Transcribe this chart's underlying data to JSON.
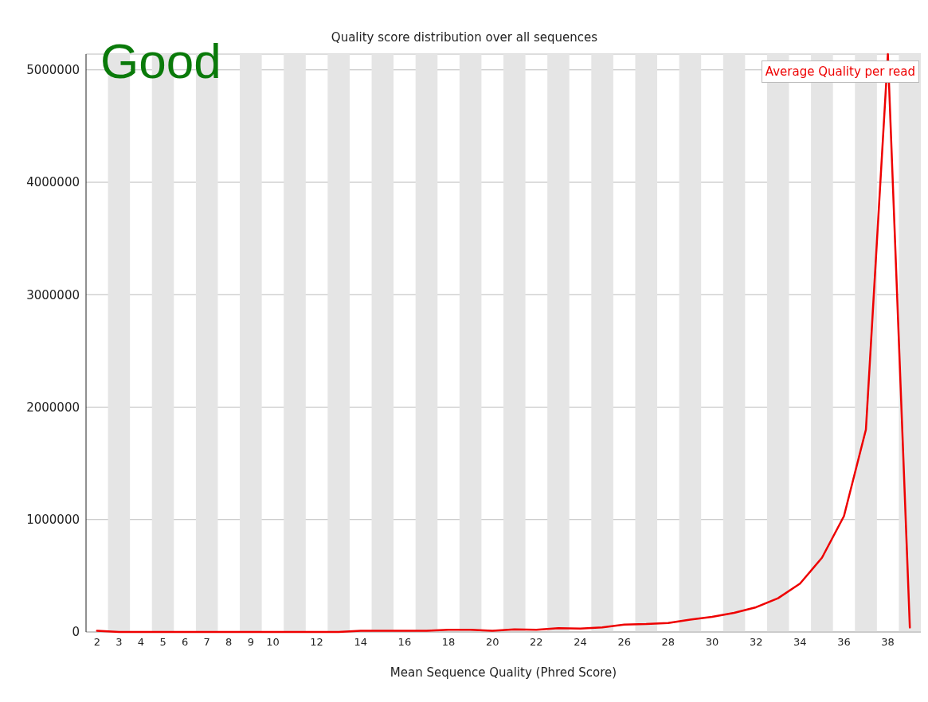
{
  "chart_data": {
    "type": "line",
    "title": "Quality score distribution over all sequences",
    "xlabel": "Mean Sequence Quality (Phred Score)",
    "annotations": [
      "Good"
    ],
    "x": [
      2,
      3,
      4,
      5,
      6,
      7,
      8,
      9,
      10,
      11,
      12,
      13,
      14,
      15,
      16,
      17,
      18,
      19,
      20,
      21,
      22,
      23,
      24,
      25,
      26,
      27,
      28,
      29,
      30,
      31,
      32,
      33,
      34,
      35,
      36,
      37,
      38,
      39
    ],
    "series": [
      {
        "name": "Average Quality per read",
        "color": "#ee0000",
        "values": [
          10000,
          0,
          0,
          0,
          0,
          0,
          0,
          0,
          0,
          0,
          0,
          0,
          10000,
          10000,
          10000,
          10000,
          20000,
          20000,
          10000,
          23000,
          20000,
          33000,
          30000,
          40000,
          65000,
          70000,
          80000,
          110000,
          135000,
          170000,
          220000,
          300000,
          430000,
          660000,
          1030000,
          1800000,
          5140000,
          40000
        ]
      }
    ],
    "xlim": [
      1.5,
      39.5
    ],
    "xticks": [
      2,
      3,
      4,
      5,
      6,
      7,
      8,
      9,
      10,
      12,
      14,
      16,
      18,
      20,
      22,
      24,
      26,
      28,
      30,
      32,
      34,
      36,
      38
    ],
    "ylim": [
      0,
      5140000
    ],
    "yticks": [
      0,
      1000000,
      2000000,
      3000000,
      4000000,
      5000000
    ],
    "grid": "y",
    "legend": "top right",
    "bands": [
      {
        "axis": "x",
        "from": 2.5,
        "to": 3.5,
        "color": "#e5e5e5"
      },
      {
        "axis": "x",
        "from": 4.5,
        "to": 5.5,
        "color": "#e5e5e5"
      },
      {
        "axis": "x",
        "from": 6.5,
        "to": 7.5,
        "color": "#e5e5e5"
      },
      {
        "axis": "x",
        "from": 8.5,
        "to": 9.5,
        "color": "#e5e5e5"
      },
      {
        "axis": "x",
        "from": 10.5,
        "to": 11.5,
        "color": "#e5e5e5"
      },
      {
        "axis": "x",
        "from": 12.5,
        "to": 13.5,
        "color": "#e5e5e5"
      },
      {
        "axis": "x",
        "from": 14.5,
        "to": 15.5,
        "color": "#e5e5e5"
      },
      {
        "axis": "x",
        "from": 16.5,
        "to": 17.5,
        "color": "#e5e5e5"
      },
      {
        "axis": "x",
        "from": 18.5,
        "to": 19.5,
        "color": "#e5e5e5"
      },
      {
        "axis": "x",
        "from": 20.5,
        "to": 21.5,
        "color": "#e5e5e5"
      },
      {
        "axis": "x",
        "from": 22.5,
        "to": 23.5,
        "color": "#e5e5e5"
      },
      {
        "axis": "x",
        "from": 24.5,
        "to": 25.5,
        "color": "#e5e5e5"
      },
      {
        "axis": "x",
        "from": 26.5,
        "to": 27.5,
        "color": "#e5e5e5"
      },
      {
        "axis": "x",
        "from": 28.5,
        "to": 29.5,
        "color": "#e5e5e5"
      },
      {
        "axis": "x",
        "from": 30.5,
        "to": 31.5,
        "color": "#e5e5e5"
      },
      {
        "axis": "x",
        "from": 32.5,
        "to": 33.5,
        "color": "#e5e5e5"
      },
      {
        "axis": "x",
        "from": 34.5,
        "to": 35.5,
        "color": "#e5e5e5"
      },
      {
        "axis": "x",
        "from": 36.5,
        "to": 37.5,
        "color": "#e5e5e5"
      },
      {
        "axis": "x",
        "from": 38.5,
        "to": 39.5,
        "color": "#e5e5e5"
      }
    ]
  }
}
